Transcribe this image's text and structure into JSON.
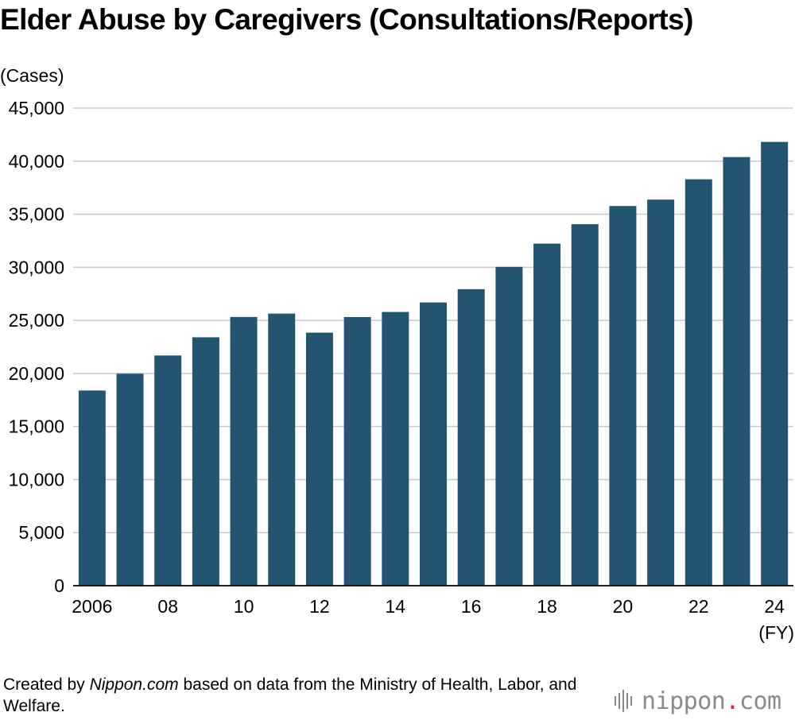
{
  "footer": {
    "prefix": "Created by ",
    "source_name": "Nippon.com",
    "suffix": " based on data from the Ministry of Health, Labor, and Welfare."
  },
  "logo": {
    "name": "nippon",
    "dot": ".",
    "tld": "com",
    "accent_color": "#d9232d",
    "text_color": "#8a8a8a"
  },
  "chart_data": {
    "type": "bar",
    "title": "Elder Abuse by Caregivers (Consultations/Reports)",
    "ylabel": "(Cases)",
    "xlabel": "(FY)",
    "ylim": [
      0,
      45000
    ],
    "yticks": [
      "0",
      "5,000",
      "10,000",
      "15,000",
      "20,000",
      "25,000",
      "30,000",
      "35,000",
      "40,000",
      "45,000"
    ],
    "categories": [
      "2006",
      "2007",
      "2008",
      "2009",
      "2010",
      "2011",
      "2012",
      "2013",
      "2014",
      "2015",
      "2016",
      "2017",
      "2018",
      "2019",
      "2020",
      "2021",
      "2022",
      "2023",
      "2024"
    ],
    "tick_labels": [
      "2006",
      "",
      "08",
      "",
      "10",
      "",
      "12",
      "",
      "14",
      "",
      "16",
      "",
      "18",
      "",
      "20",
      "",
      "22",
      "",
      "24"
    ],
    "values": [
      18390,
      19971,
      21692,
      23404,
      25315,
      25636,
      23843,
      25310,
      25791,
      26688,
      27940,
      30040,
      32231,
      34057,
      35774,
      36378,
      38291,
      40386,
      41814
    ],
    "bar_color": "#235573",
    "grid_color": "#c8c8c8",
    "grid": true,
    "legend": "none"
  }
}
